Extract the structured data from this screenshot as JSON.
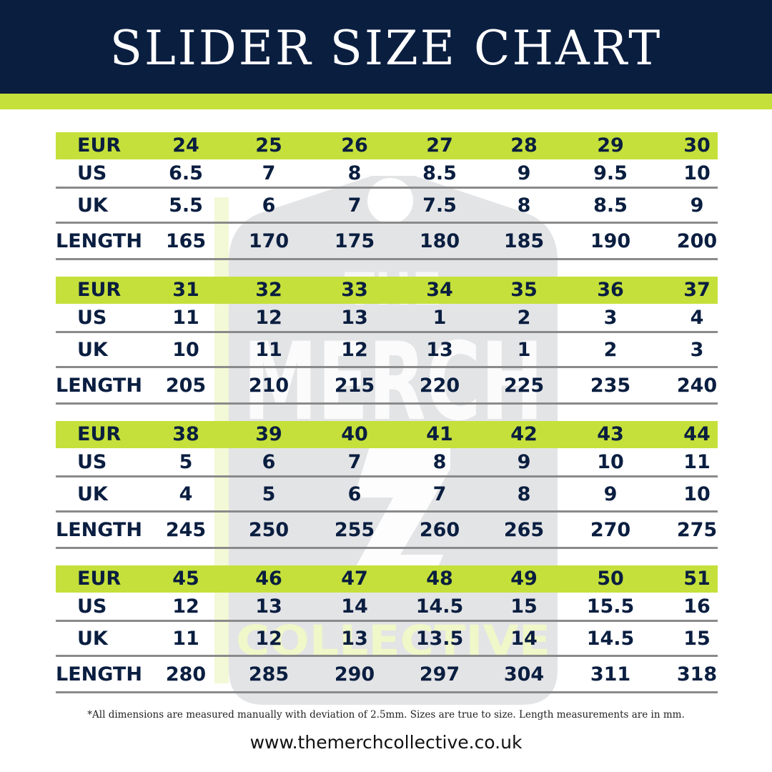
{
  "title": "SLIDER SIZE CHART",
  "colors": {
    "navy": "#0a1e40",
    "lime": "#c5e03a",
    "rule": "#8a8a8a"
  },
  "row_labels": {
    "eur": "EUR",
    "us": "US",
    "uk": "UK",
    "length": "LENGTH"
  },
  "blocks": [
    {
      "eur": [
        "24",
        "25",
        "26",
        "27",
        "28",
        "29",
        "30"
      ],
      "us": [
        "6.5",
        "7",
        "8",
        "8.5",
        "9",
        "9.5",
        "10"
      ],
      "uk": [
        "5.5",
        "6",
        "7",
        "7.5",
        "8",
        "8.5",
        "9"
      ],
      "length": [
        "165",
        "170",
        "175",
        "180",
        "185",
        "190",
        "200"
      ]
    },
    {
      "eur": [
        "31",
        "32",
        "33",
        "34",
        "35",
        "36",
        "37"
      ],
      "us": [
        "11",
        "12",
        "13",
        "1",
        "2",
        "3",
        "4"
      ],
      "uk": [
        "10",
        "11",
        "12",
        "13",
        "1",
        "2",
        "3"
      ],
      "length": [
        "205",
        "210",
        "215",
        "220",
        "225",
        "235",
        "240"
      ]
    },
    {
      "eur": [
        "38",
        "39",
        "40",
        "41",
        "42",
        "43",
        "44"
      ],
      "us": [
        "5",
        "6",
        "7",
        "8",
        "9",
        "10",
        "11"
      ],
      "uk": [
        "4",
        "5",
        "6",
        "7",
        "8",
        "9",
        "10"
      ],
      "length": [
        "245",
        "250",
        "255",
        "260",
        "265",
        "270",
        "275"
      ]
    },
    {
      "eur": [
        "45",
        "46",
        "47",
        "48",
        "49",
        "50",
        "51"
      ],
      "us": [
        "12",
        "13",
        "14",
        "14.5",
        "15",
        "15.5",
        "16"
      ],
      "uk": [
        "11",
        "12",
        "13",
        "13.5",
        "14",
        "14.5",
        "15"
      ],
      "length": [
        "280",
        "285",
        "290",
        "297",
        "304",
        "311",
        "318"
      ]
    }
  ],
  "watermark": {
    "line1": "THE",
    "line2": "MERCH",
    "line3": "COLLECTIVE"
  },
  "footnote": "*All dimensions are measured manually with deviation of 2.5mm. Sizes are true to size. Length measurements are in mm.",
  "website": "www.themerchcollective.co.uk"
}
